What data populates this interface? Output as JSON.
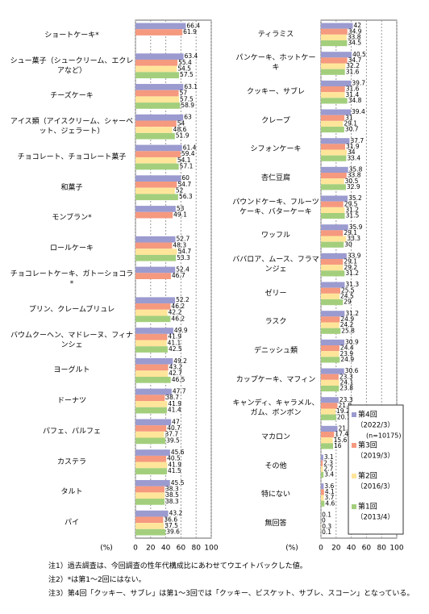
{
  "chart_data": [
    {
      "type": "hbar",
      "x_label": "(%)",
      "xlim": [
        0,
        100
      ],
      "xticks": [
        0,
        20,
        40,
        60,
        80,
        100
      ],
      "grid": true,
      "categories": [
        "ショートケーキ*",
        "シュー菓子（シュークリーム、エクレアなど）",
        "チーズケーキ",
        "アイス類（アイスクリーム、シャーベット、ジェラート）",
        "チョコレート、チョコレート菓子",
        "和菓子",
        "モンブラン*",
        "ロールケーキ",
        "チョコレートケーキ、ガトーショコラ*",
        "プリン、クレームブリュレ",
        "バウムクーヘン、マドレーヌ、フィナンシェ",
        "ヨーグルト",
        "ドーナツ",
        "パフェ、パルフェ",
        "カステラ",
        "タルト",
        "パイ"
      ],
      "series": [
        {
          "name": "第4回",
          "color": "#9b9bd0",
          "values": [
            66.4,
            63.4,
            63.1,
            63.0,
            61.4,
            60.0,
            53.0,
            52.7,
            52.4,
            52.2,
            49.9,
            49.2,
            47.7,
            47.0,
            45.6,
            45.5,
            43.2
          ]
        },
        {
          "name": "第3回",
          "color": "#f5997f",
          "values": [
            61.9,
            55.4,
            57.0,
            54.0,
            59.4,
            54.7,
            49.1,
            48.3,
            46.7,
            46.2,
            41.9,
            43.2,
            38.7,
            40.7,
            40.5,
            38.3,
            36.6
          ]
        },
        {
          "name": "第2回",
          "color": "#ffe59a",
          "values": [
            null,
            54.5,
            57.5,
            48.6,
            54.1,
            52.0,
            null,
            54.7,
            null,
            42.2,
            41.1,
            42.7,
            41.9,
            37.7,
            41.9,
            38.5,
            37.5
          ]
        },
        {
          "name": "第1回",
          "color": "#a3cf7d",
          "values": [
            null,
            57.5,
            58.9,
            51.9,
            57.1,
            56.3,
            null,
            53.3,
            null,
            46.2,
            42.5,
            46.5,
            41.4,
            39.5,
            41.5,
            38.3,
            39.6
          ]
        }
      ]
    },
    {
      "type": "hbar",
      "x_label": "(%)",
      "xlim": [
        0,
        100
      ],
      "xticks": [
        0,
        20,
        40,
        60,
        80,
        100
      ],
      "grid": true,
      "legend": "bottom-right",
      "legend_note": "(n=10175)",
      "categories": [
        "ティラミス",
        "パンケーキ、ホットケーキ",
        "クッキー、サブレ",
        "クレープ",
        "シフォンケーキ",
        "杏仁豆腐",
        "パウンドケーキ、フルーツケーキ、バターケーキ",
        "ワッフル",
        "ババロア、ムース、フラマンジェ",
        "ゼリー",
        "ラスク",
        "デニッシュ類",
        "カップケーキ、マフィン",
        "キャンディ、キャラメル、ガム、ボンボン",
        "マカロン",
        "その他",
        "特にない",
        "無回答"
      ],
      "series": [
        {
          "name": "第4回",
          "period": "（2022/3）",
          "color": "#9b9bd0",
          "values": [
            42.0,
            40.5,
            39.7,
            39.4,
            37.7,
            35.8,
            35.2,
            35.9,
            33.9,
            31.3,
            31.2,
            30.9,
            30.6,
            23.3,
            21.8,
            3.1,
            3.6,
            0.1
          ]
        },
        {
          "name": "第3回",
          "period": "（2019/3）",
          "color": "#f5997f",
          "values": [
            34.9,
            34.7,
            31.6,
            31.0,
            31.9,
            33.8,
            29.5,
            29.1,
            29.1,
            25.5,
            24.9,
            24.4,
            23.3,
            21.8,
            17.4,
            2.3,
            4.1,
            0.0
          ]
        },
        {
          "name": "第2回",
          "period": "（2016/3）",
          "color": "#ffe59a",
          "values": [
            33.8,
            32.2,
            31.4,
            29.1,
            34.0,
            30.5,
            31.2,
            33.3,
            29.2,
            24.5,
            24.2,
            23.9,
            24.1,
            19.2,
            15.6,
            2.7,
            3.7,
            0.3
          ]
        },
        {
          "name": "第1回",
          "period": "（2013/4）",
          "color": "#a3cf7d",
          "values": [
            34.5,
            31.6,
            34.8,
            30.7,
            33.4,
            32.9,
            31.5,
            30.0,
            31.2,
            29.0,
            25.8,
            24.9,
            23.8,
            20.1,
            16.0,
            3.4,
            4.6,
            0.1
          ]
        }
      ]
    }
  ],
  "notes": [
    "注1）過去調査は、今回調査の性年代構成比にあわせてウエイトバックした値。",
    "注2）*は第1～2回にはない。",
    "注3）第4回「クッキー、サブレ」は第1～3回では「クッキー、ビスケット、サブレ、スコーン」となっている。"
  ]
}
